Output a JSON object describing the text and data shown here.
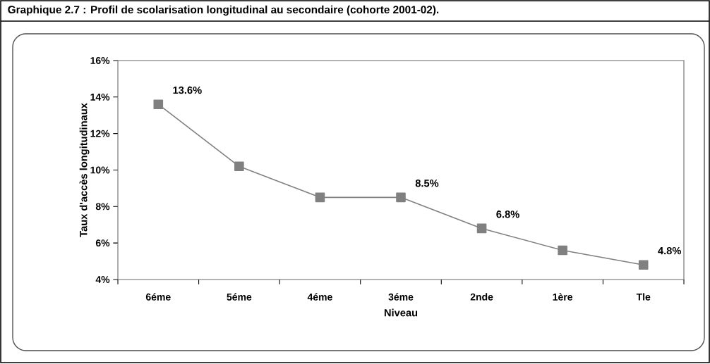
{
  "chart_data": {
    "type": "line",
    "title": "Graphique 2.7 : Profil de scolarisation longitudinal au secondaire (cohorte 2001-02).",
    "xlabel": "Niveau",
    "ylabel": "Taux d'accès longitudinaux",
    "categories": [
      "6éme",
      "5éme",
      "4éme",
      "3éme",
      "2nde",
      "1ère",
      "Tle"
    ],
    "series": [
      {
        "color": "#808080",
        "values": [
          13.6,
          10.2,
          8.5,
          8.5,
          6.8,
          5.6,
          4.8
        ],
        "value_labels": [
          "13.6%",
          null,
          null,
          "8.5%",
          "6.8%",
          null,
          "4.8%"
        ]
      }
    ],
    "ylim": [
      4,
      16
    ],
    "yticks": [
      {
        "value": 4,
        "label": "4%"
      },
      {
        "value": 6,
        "label": "6%"
      },
      {
        "value": 8,
        "label": "8%"
      },
      {
        "value": 10,
        "label": "10%"
      },
      {
        "value": 12,
        "label": "12%"
      },
      {
        "value": 14,
        "label": "14%"
      },
      {
        "value": 16,
        "label": "16%"
      }
    ],
    "marker": "square",
    "line_style": "solid"
  }
}
